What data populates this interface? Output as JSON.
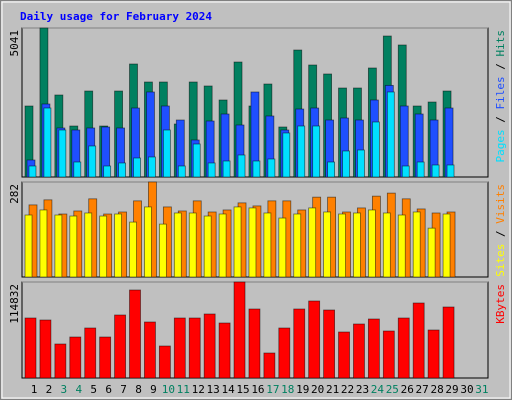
{
  "chart_data": [
    {
      "type": "bar",
      "title": "Daily usage for February 2024",
      "legend_separator": " / ",
      "ylim": [
        0,
        5041
      ],
      "yticks": [
        5041
      ],
      "series": [
        {
          "name": "Hits",
          "color": "#008060",
          "values": [
            2402,
            5041,
            2774,
            1725,
            2909,
            1725,
            2909,
            3823,
            3214,
            3214,
            1793,
            3214,
            3079,
            2605,
            3890,
            2402,
            3146,
            1692,
            4296,
            3789,
            3485,
            3011,
            3011,
            3688,
            4770,
            4466,
            2402,
            2537,
            2909,
            null,
            null
          ]
        },
        {
          "name": "Files",
          "color": "#1f4fff",
          "values": [
            575,
            2470,
            1658,
            1590,
            1658,
            1692,
            1658,
            2334,
            2876,
            2402,
            1928,
            1252,
            1894,
            2131,
            1759,
            2876,
            2064,
            1590,
            2300,
            2334,
            1928,
            1996,
            1928,
            2605,
            3100,
            2402,
            2131,
            1928,
            2334,
            null,
            null
          ]
        },
        {
          "name": "Pages",
          "color": "#00e0ff",
          "values": [
            372,
            2334,
            1590,
            507,
            1049,
            372,
            474,
            643,
            677,
            1590,
            372,
            1116,
            474,
            541,
            744,
            541,
            609,
            1489,
            1725,
            1725,
            507,
            880,
            913,
            1861,
            2876,
            372,
            507,
            406,
            406,
            null,
            null
          ]
        }
      ]
    },
    {
      "type": "bar",
      "ylim": [
        0,
        282
      ],
      "yticks": [
        282
      ],
      "series": [
        {
          "name": "Visits",
          "color": "#ff8000",
          "values": [
            214,
            229,
            187,
            196,
            232,
            187,
            193,
            226,
            282,
            208,
            196,
            226,
            193,
            199,
            220,
            211,
            226,
            226,
            199,
            237,
            237,
            193,
            205,
            240,
            249,
            232,
            202,
            190,
            193,
            null,
            null
          ]
        },
        {
          "name": "Sites",
          "color": "#ffff00",
          "values": [
            184,
            199,
            184,
            181,
            190,
            181,
            187,
            163,
            208,
            157,
            190,
            190,
            181,
            187,
            208,
            205,
            190,
            175,
            187,
            205,
            193,
            187,
            190,
            199,
            190,
            184,
            193,
            145,
            187,
            null,
            null
          ]
        }
      ]
    },
    {
      "type": "bar",
      "ylim": [
        0,
        114832
      ],
      "yticks": [
        114832
      ],
      "categories": [
        "1",
        "2",
        "3",
        "4",
        "5",
        "6",
        "7",
        "8",
        "9",
        "10",
        "11",
        "12",
        "13",
        "14",
        "15",
        "16",
        "17",
        "18",
        "19",
        "20",
        "21",
        "22",
        "23",
        "24",
        "25",
        "26",
        "27",
        "28",
        "29",
        "30",
        "31"
      ],
      "category_colors": [
        "#000000",
        "#000000",
        "#008060",
        "#008060",
        "#000000",
        "#000000",
        "#000000",
        "#000000",
        "#000000",
        "#008060",
        "#008060",
        "#000000",
        "#000000",
        "#000000",
        "#000000",
        "#000000",
        "#008060",
        "#008060",
        "#000000",
        "#000000",
        "#000000",
        "#000000",
        "#000000",
        "#008060",
        "#008060",
        "#000000",
        "#000000",
        "#000000",
        "#000000",
        "#000000",
        "#008060"
      ],
      "series": [
        {
          "name": "KBytes",
          "color": "#ff0000",
          "values": [
            71772,
            69380,
            40671,
            49044,
            59810,
            49044,
            75361,
            105266,
            66987,
            38278,
            71772,
            71772,
            76557,
            65791,
            114832,
            82538,
            29905,
            59810,
            82538,
            92107,
            81342,
            55025,
            64595,
            70576,
            56221,
            71772,
            89715,
            57418,
            84930,
            null,
            null
          ]
        }
      ]
    }
  ]
}
